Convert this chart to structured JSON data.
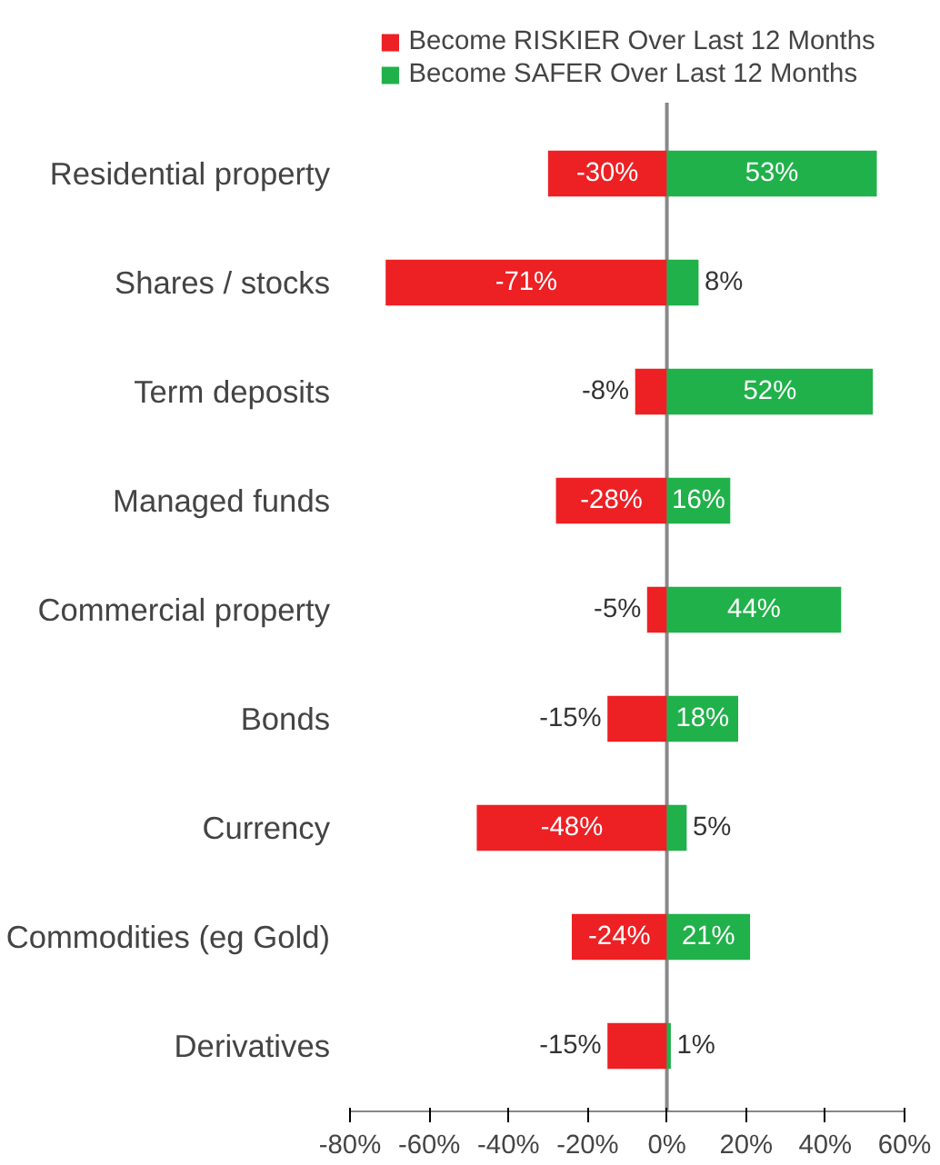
{
  "chart_data": {
    "type": "bar",
    "orientation": "horizontal",
    "stacked": true,
    "categories": [
      "Residential property",
      "Shares / stocks",
      "Term deposits",
      "Managed funds",
      "Commercial property",
      "Bonds",
      "Currency",
      "Commodities (eg Gold)",
      "Derivatives"
    ],
    "series": [
      {
        "name": "Become RISKIER Over Last 12 Months",
        "color": "#ed2024",
        "values": [
          -30,
          -71,
          -8,
          -28,
          -5,
          -15,
          -48,
          -24,
          -15
        ],
        "value_labels": [
          "-30%",
          "-71%",
          "-8%",
          "-28%",
          "-5%",
          "-15%",
          "-48%",
          "-24%",
          "-15%"
        ]
      },
      {
        "name": "Become SAFER Over Last 12 Months",
        "color": "#20b14a",
        "values": [
          53,
          8,
          52,
          16,
          44,
          18,
          5,
          21,
          1
        ],
        "value_labels": [
          "53%",
          "8%",
          "52%",
          "16%",
          "44%",
          "18%",
          "5%",
          "21%",
          "1%"
        ]
      }
    ],
    "xlim": [
      -80,
      60
    ],
    "xticks": [
      {
        "value": -80,
        "label": "-80%"
      },
      {
        "value": -60,
        "label": "-60%"
      },
      {
        "value": -40,
        "label": "-40%"
      },
      {
        "value": -20,
        "label": "-20%"
      },
      {
        "value": 0,
        "label": "0%"
      },
      {
        "value": 20,
        "label": "20%"
      },
      {
        "value": 40,
        "label": "40%"
      },
      {
        "value": 60,
        "label": "60%"
      }
    ],
    "ref_lines": [
      {
        "axis": "x",
        "value": 0,
        "color": "#888888"
      }
    ],
    "grid": false,
    "legend": "top"
  }
}
